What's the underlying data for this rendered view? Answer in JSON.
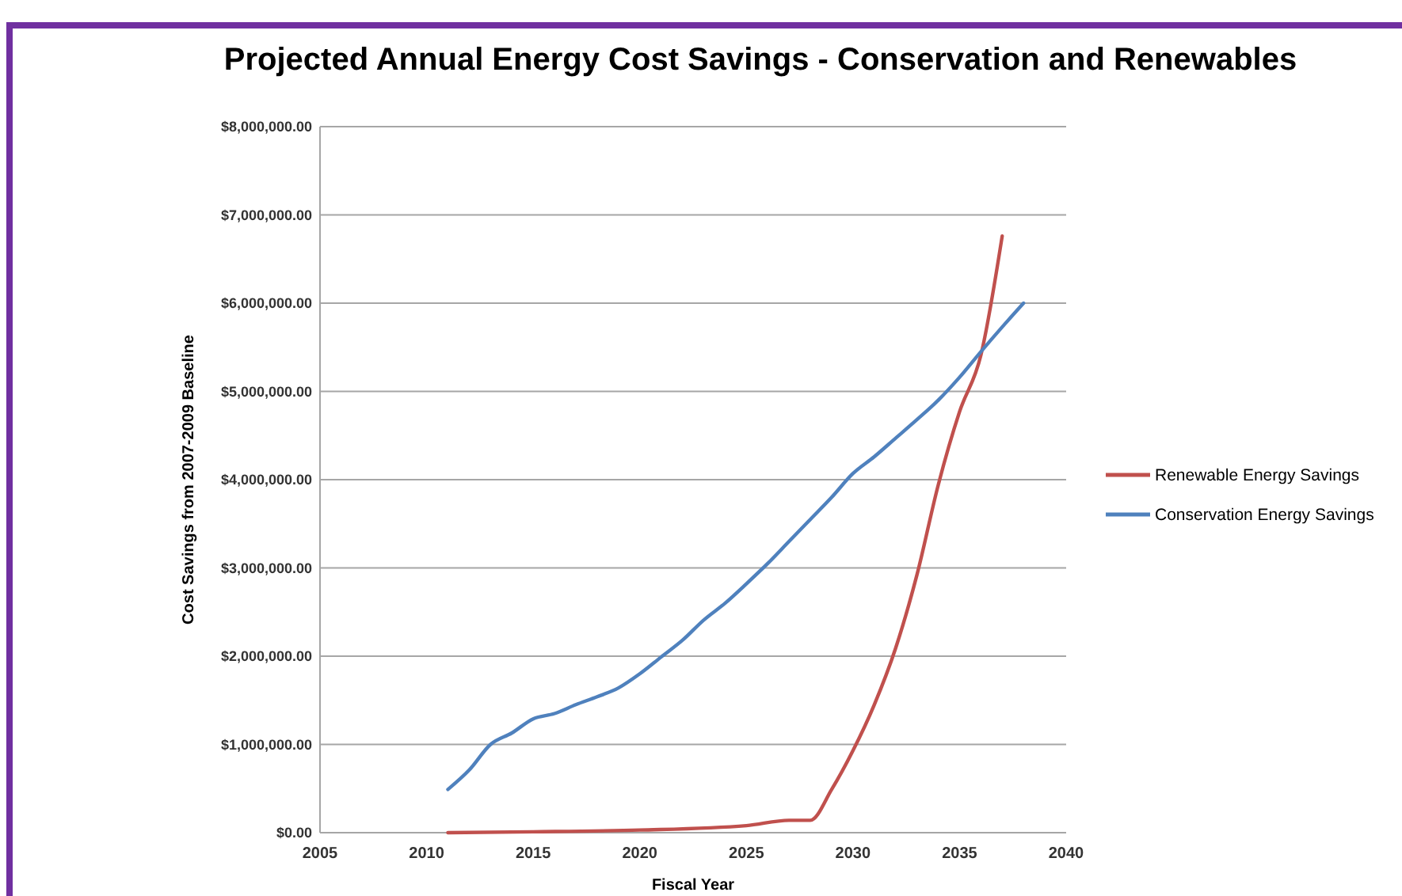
{
  "chart_data": {
    "type": "line",
    "title": "Projected Annual Energy Cost Savings - Conservation and Renewables",
    "xlabel": "Fiscal Year",
    "ylabel": "Cost Savings from 2007-2009 Baseline",
    "xlim": [
      2005,
      2040
    ],
    "xticks": [
      2005,
      2010,
      2015,
      2020,
      2025,
      2030,
      2035,
      2040
    ],
    "ylim": [
      0,
      8000000
    ],
    "yticks": [
      {
        "value": 0,
        "label": "$0.00"
      },
      {
        "value": 1000000,
        "label": "$1,000,000.00"
      },
      {
        "value": 2000000,
        "label": "$2,000,000.00"
      },
      {
        "value": 3000000,
        "label": "$3,000,000.00"
      },
      {
        "value": 4000000,
        "label": "$4,000,000.00"
      },
      {
        "value": 5000000,
        "label": "$5,000,000.00"
      },
      {
        "value": 6000000,
        "label": "$6,000,000.00"
      },
      {
        "value": 7000000,
        "label": "$7,000,000.00"
      },
      {
        "value": 8000000,
        "label": "$8,000,000.00"
      }
    ],
    "grid": "y",
    "legend": "right",
    "marker": "none",
    "line_style": "solid",
    "series": [
      {
        "name": "Renewable Energy Savings",
        "color": "#c0504d",
        "x": [
          2011,
          2015,
          2020,
          2025,
          2027,
          2028,
          2029,
          2030,
          2031,
          2032,
          2033,
          2034,
          2035,
          2036,
          2037
        ],
        "values": [
          0,
          10000,
          30000,
          80000,
          140000,
          140000,
          490000,
          930000,
          1450000,
          2090000,
          2920000,
          3940000,
          4770000,
          5410000,
          6760000
        ]
      },
      {
        "name": "Conservation Energy Savings",
        "color": "#4f81bd",
        "x": [
          2011,
          2012,
          2013,
          2014,
          2015,
          2016,
          2017,
          2018,
          2019,
          2020,
          2021,
          2022,
          2023,
          2024,
          2025,
          2026,
          2027,
          2028,
          2029,
          2030,
          2031,
          2032,
          2033,
          2034,
          2035,
          2036,
          2037,
          2038
        ],
        "values": [
          490000,
          710000,
          1000000,
          1130000,
          1290000,
          1350000,
          1450000,
          1540000,
          1640000,
          1800000,
          1990000,
          2180000,
          2410000,
          2600000,
          2820000,
          3050000,
          3300000,
          3550000,
          3800000,
          4070000,
          4260000,
          4470000,
          4680000,
          4900000,
          5160000,
          5450000,
          5730000,
          6000000
        ]
      }
    ]
  }
}
